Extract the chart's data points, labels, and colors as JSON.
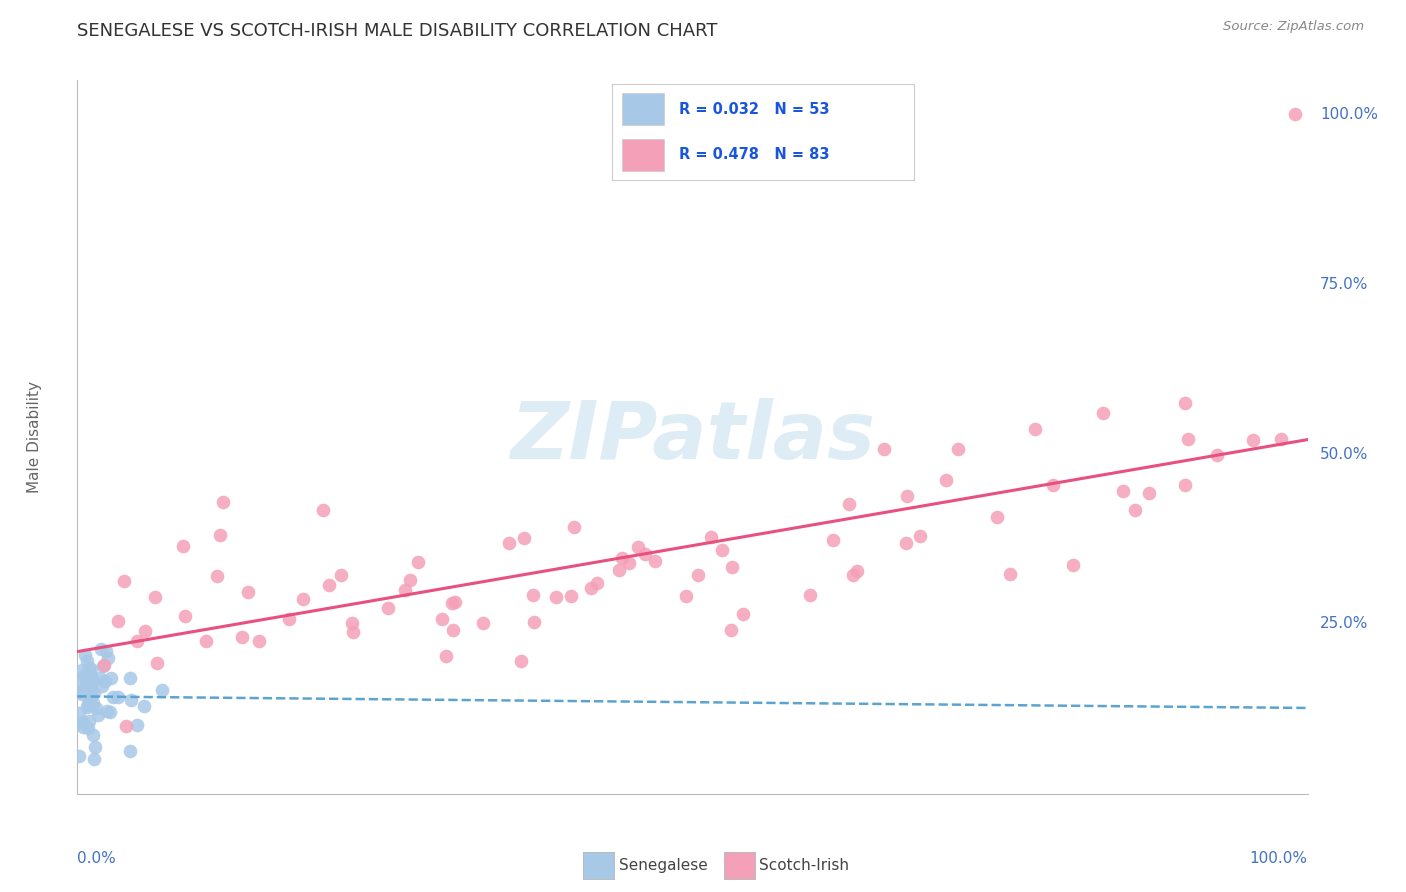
{
  "title": "SENEGALESE VS SCOTCH-IRISH MALE DISABILITY CORRELATION CHART",
  "source": "Source: ZipAtlas.com",
  "ylabel": "Male Disability",
  "senegalese_R": 0.032,
  "senegalese_N": 53,
  "scotch_irish_R": 0.478,
  "scotch_irish_N": 83,
  "senegalese_color": "#a8c8e8",
  "scotch_irish_color": "#f4a0b8",
  "senegalese_line_color": "#5ba3d0",
  "scotch_irish_line_color": "#e85080",
  "watermark_color": "#c8e0f0",
  "background_color": "#ffffff",
  "grid_color": "#dddddd",
  "title_color": "#333333",
  "legend_text_color": "#1a56db",
  "tick_label_color": "#4472c4",
  "source_color": "#888888"
}
